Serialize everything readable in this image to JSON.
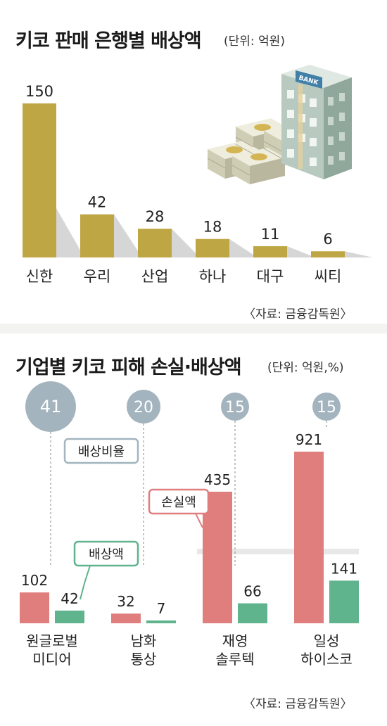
{
  "chart_data": [
    {
      "type": "bar",
      "title": "키코 판매 은행별 배상액",
      "unit": "(단위: 억원)",
      "categories": [
        "신한",
        "우리",
        "산업",
        "하나",
        "대구",
        "씨티"
      ],
      "values": [
        150,
        42,
        28,
        18,
        11,
        6
      ],
      "source": "〈자료: 금융감독원〉",
      "colors": {
        "bar": "#bfa644",
        "bar_shadow": "#d6d6d6"
      }
    },
    {
      "type": "bar",
      "title": "기업별 키코 피해 손실·배상액",
      "unit": "(단위: 억원,%)",
      "categories": [
        [
          "원글로벌",
          "미디어"
        ],
        [
          "남화",
          "통상"
        ],
        [
          "재영",
          "솔루텍"
        ],
        [
          "일성",
          "하이스코"
        ]
      ],
      "series": [
        {
          "name": "손실액",
          "values": [
            102,
            32,
            435,
            921
          ],
          "color": "#e07e7e"
        },
        {
          "name": "배상액",
          "values": [
            42,
            7,
            66,
            141
          ],
          "color": "#5fb38d"
        }
      ],
      "ratio_name": "배상비율",
      "ratios": [
        41,
        20,
        15,
        15
      ],
      "ratio_color": "#a3b4bf",
      "source": "〈자료: 금융감독원〉"
    }
  ],
  "icons": [
    "bank-building-icon",
    "money-stacks-icon"
  ],
  "bank_sign": "BANK"
}
